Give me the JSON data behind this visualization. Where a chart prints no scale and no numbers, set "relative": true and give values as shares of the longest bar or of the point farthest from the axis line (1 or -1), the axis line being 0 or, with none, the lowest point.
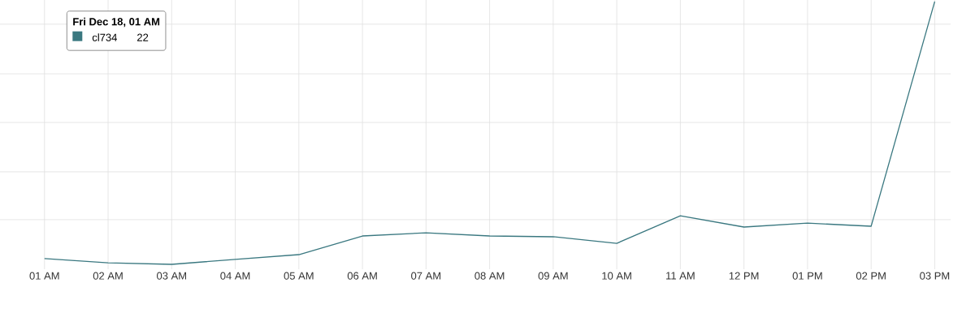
{
  "chart_data": {
    "type": "line",
    "relative": true,
    "categories": [
      "01 AM",
      "02 AM",
      "03 AM",
      "04 AM",
      "05 AM",
      "06 AM",
      "07 AM",
      "08 AM",
      "09 AM",
      "10 AM",
      "11 AM",
      "12 PM",
      "01 PM",
      "02 PM",
      "03 PM"
    ],
    "series": [
      {
        "name": "cl734",
        "color": "#3a7880",
        "values": [
          0.022,
          0.006,
          0,
          0.019,
          0.037,
          0.108,
          0.12,
          0.108,
          0.105,
          0.08,
          0.185,
          0.142,
          0.157,
          0.145,
          1
        ]
      }
    ],
    "annotations": [
      "Fri Dec 18, 01 AM",
      "22"
    ],
    "grid": true,
    "legend": "top left",
    "marker": "none",
    "line_style": "solid"
  }
}
